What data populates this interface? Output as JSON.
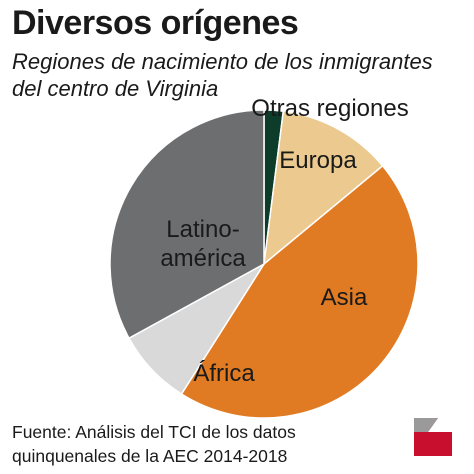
{
  "title": "Diversos orígenes",
  "subtitle": "Regiones de nacimiento de los inmigrantes del centro de Virginia",
  "source": {
    "line1": "Fuente: Análisis del TCI de los datos",
    "line2": "quinquenales de la AEC 2014-2018"
  },
  "chart_data": {
    "type": "pie",
    "title": "Diversos orígenes",
    "subtitle": "Regiones de nacimiento de los inmigrantes del centro de Virginia",
    "slices": [
      {
        "label": "Otras regiones",
        "value": 2,
        "color": "#0d3d2a"
      },
      {
        "label": "Europa",
        "value": 12,
        "color": "#ebc98f"
      },
      {
        "label": "Asia",
        "value": 45,
        "color": "#e07b24"
      },
      {
        "label": "África",
        "value": 8,
        "color": "#d9d9d9"
      },
      {
        "label": "Latinoamérica",
        "value": 33,
        "color": "#6d6e70",
        "display_lines": [
          "Latino-",
          "américa"
        ]
      }
    ],
    "start_angle_deg": 0,
    "direction": "clockwise",
    "legend": "none",
    "slice_outline": "#ffffff"
  },
  "logo": {
    "icon": "red-corner-logo-icon",
    "colors": [
      "#c8102e",
      "#9a9a9a"
    ]
  }
}
